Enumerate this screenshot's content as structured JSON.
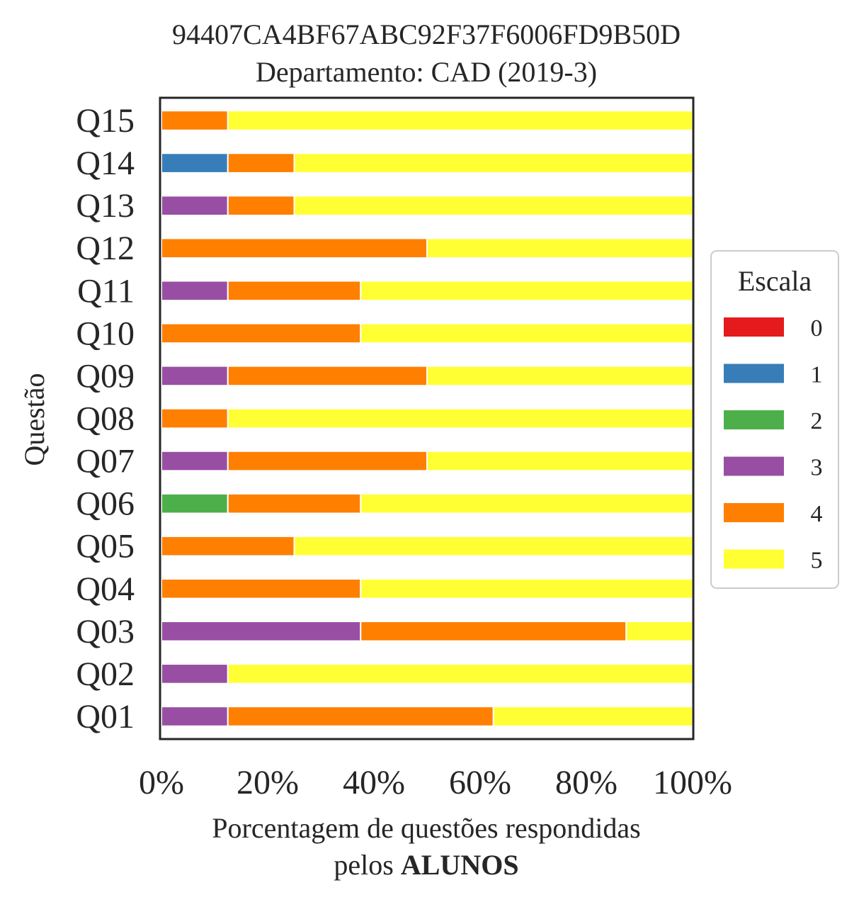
{
  "chart_data": {
    "type": "bar",
    "orientation": "horizontal",
    "stacked": true,
    "title_lines": [
      "94407CA4BF67ABC92F37F6006FD9B50D",
      "Departamento: CAD (2019-3)"
    ],
    "xlabel_line1": "Porcentagem de questões respondidas",
    "xlabel_line2_prefix": "pelos ",
    "xlabel_line2_bold": "ALUNOS",
    "ylabel": "Questão",
    "xlim": [
      0,
      100
    ],
    "xticks": [
      "0%",
      "20%",
      "40%",
      "60%",
      "80%",
      "100%"
    ],
    "categories": [
      "Q01",
      "Q02",
      "Q03",
      "Q04",
      "Q05",
      "Q06",
      "Q07",
      "Q08",
      "Q09",
      "Q10",
      "Q11",
      "Q12",
      "Q13",
      "Q14",
      "Q15"
    ],
    "legend": {
      "title": "Escala",
      "position": "center-right"
    },
    "grid": false,
    "series": [
      {
        "name": "0",
        "color": "#e41a1c",
        "values": [
          0,
          0,
          0,
          0,
          0,
          0,
          0,
          0,
          0,
          0,
          0,
          0,
          0,
          0,
          0
        ]
      },
      {
        "name": "1",
        "color": "#377eb8",
        "values": [
          0,
          0,
          0,
          0,
          0,
          0,
          0,
          0,
          0,
          0,
          0,
          0,
          0,
          12.5,
          0
        ]
      },
      {
        "name": "2",
        "color": "#4daf4a",
        "values": [
          0,
          0,
          0,
          0,
          0,
          12.5,
          0,
          0,
          0,
          0,
          0,
          0,
          0,
          0,
          0
        ]
      },
      {
        "name": "3",
        "color": "#984ea3",
        "values": [
          12.5,
          12.5,
          37.5,
          0,
          0,
          0,
          12.5,
          0,
          12.5,
          0,
          12.5,
          0,
          12.5,
          0,
          0
        ]
      },
      {
        "name": "4",
        "color": "#ff7f00",
        "values": [
          50,
          0,
          50,
          37.5,
          25,
          25,
          37.5,
          12.5,
          37.5,
          37.5,
          25,
          50,
          12.5,
          12.5,
          12.5
        ]
      },
      {
        "name": "5",
        "color": "#ffff33",
        "values": [
          37.5,
          87.5,
          12.5,
          62.5,
          75,
          62.5,
          50,
          87.5,
          50,
          62.5,
          62.5,
          50,
          75,
          75,
          87.5
        ]
      }
    ]
  }
}
